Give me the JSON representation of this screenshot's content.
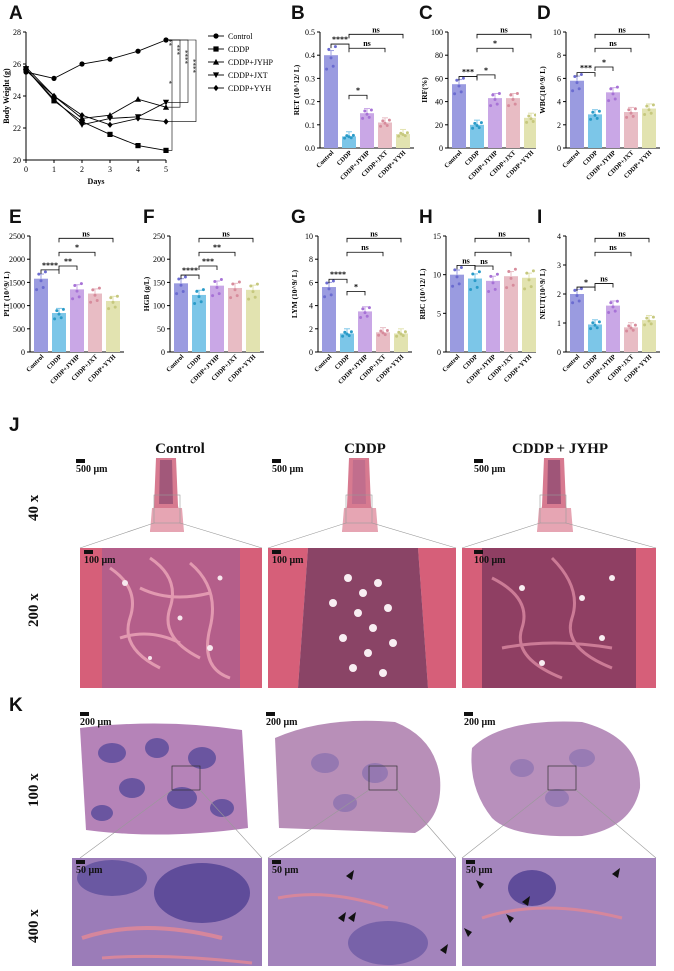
{
  "panels": {
    "A": "A",
    "B": "B",
    "C": "C",
    "D": "D",
    "E": "E",
    "F": "F",
    "G": "G",
    "H": "H",
    "I": "I",
    "J": "J",
    "K": "K"
  },
  "chart_data": [
    {
      "panel": "A",
      "type": "line",
      "xlabel": "Days",
      "ylabel": "Body Weight (g)",
      "x": [
        0,
        1,
        2,
        3,
        4,
        5
      ],
      "xlim": [
        0,
        5
      ],
      "ylim": [
        20,
        28
      ],
      "yticks": [
        20,
        22,
        24,
        26,
        28
      ],
      "series": [
        {
          "name": "Control",
          "values": [
            25.5,
            25.1,
            26.0,
            26.3,
            26.8,
            27.5
          ],
          "marker": "circle"
        },
        {
          "name": "CDDP",
          "values": [
            25.7,
            23.7,
            22.4,
            21.6,
            20.9,
            20.6
          ],
          "marker": "square"
        },
        {
          "name": "CDDP+JYHP",
          "values": [
            25.8,
            24.0,
            22.6,
            22.8,
            23.8,
            23.3
          ],
          "marker": "triangle-up"
        },
        {
          "name": "CDDP+JXT",
          "values": [
            25.7,
            23.8,
            22.2,
            22.6,
            22.7,
            23.6
          ],
          "marker": "triangle-down"
        },
        {
          "name": "CDDP+YYH",
          "values": [
            25.6,
            24.0,
            22.8,
            22.2,
            22.6,
            22.4
          ],
          "marker": "diamond"
        }
      ],
      "significance": [
        "**",
        "***",
        "****",
        "****",
        "*"
      ]
    },
    {
      "panel": "B",
      "type": "bar",
      "ylabel": "RET (10^12/ L)",
      "ylim": [
        0,
        0.5
      ],
      "yticks": [
        "0.0",
        "0.1",
        "0.2",
        "0.3",
        "0.4",
        "0.5"
      ],
      "categories": [
        "Control",
        "CDDP",
        "CDDP+JYHP",
        "CDDP+JXT",
        "CDDP+YYH"
      ],
      "values": [
        0.4,
        0.05,
        0.15,
        0.11,
        0.06
      ],
      "brackets": [
        {
          "from": 0,
          "to": 1,
          "label": "****"
        },
        {
          "from": 1,
          "to": 2,
          "label": "*"
        },
        {
          "from": 1,
          "to": 3,
          "label": "ns"
        },
        {
          "from": 1,
          "to": 4,
          "label": "ns"
        }
      ]
    },
    {
      "panel": "C",
      "type": "bar",
      "ylabel": "IRF(%)",
      "ylim": [
        0,
        100
      ],
      "yticks": [
        "0",
        "20",
        "40",
        "60",
        "80",
        "100"
      ],
      "categories": [
        "Control",
        "CDDP",
        "CDDP+JYHP",
        "CDDP+JXT",
        "CDDP+YYH"
      ],
      "values": [
        55,
        20,
        43,
        43,
        26
      ],
      "brackets": [
        {
          "from": 0,
          "to": 1,
          "label": "***"
        },
        {
          "from": 1,
          "to": 2,
          "label": "*"
        },
        {
          "from": 1,
          "to": 3,
          "label": "*"
        },
        {
          "from": 1,
          "to": 4,
          "label": "ns"
        }
      ]
    },
    {
      "panel": "D",
      "type": "bar",
      "ylabel": "WBC(10^9/ L)",
      "ylim": [
        0,
        10
      ],
      "yticks": [
        "0",
        "2",
        "4",
        "6",
        "8",
        "10"
      ],
      "categories": [
        "Control",
        "CDDP",
        "CDDP+JYHP",
        "CDDP+JXT",
        "CDDP+YYH"
      ],
      "values": [
        5.8,
        2.9,
        4.8,
        3.1,
        3.4
      ],
      "brackets": [
        {
          "from": 0,
          "to": 1,
          "label": "***"
        },
        {
          "from": 1,
          "to": 2,
          "label": "*"
        },
        {
          "from": 1,
          "to": 3,
          "label": "ns"
        },
        {
          "from": 1,
          "to": 4,
          "label": "ns"
        }
      ]
    },
    {
      "panel": "E",
      "type": "bar",
      "ylabel": "PLT (10^9/ L)",
      "ylim": [
        0,
        2500
      ],
      "yticks": [
        "0",
        "500",
        "1000",
        "1500",
        "2000",
        "2500"
      ],
      "categories": [
        "Control",
        "CDDP",
        "CDDP+JYHP",
        "CDDP+JXT",
        "CDDP+YYH"
      ],
      "values": [
        1580,
        840,
        1350,
        1260,
        1100
      ],
      "brackets": [
        {
          "from": 0,
          "to": 1,
          "label": "****"
        },
        {
          "from": 1,
          "to": 2,
          "label": "**"
        },
        {
          "from": 1,
          "to": 3,
          "label": "*"
        },
        {
          "from": 1,
          "to": 4,
          "label": "ns"
        }
      ]
    },
    {
      "panel": "F",
      "type": "bar",
      "ylabel": "HGB (g/L)",
      "ylim": [
        0,
        250
      ],
      "yticks": [
        "0",
        "50",
        "100",
        "150",
        "200",
        "250"
      ],
      "categories": [
        "Control",
        "CDDP",
        "CDDP+JYHP",
        "CDDP+JXT",
        "CDDP+YYH"
      ],
      "values": [
        148,
        123,
        143,
        138,
        134
      ],
      "brackets": [
        {
          "from": 0,
          "to": 1,
          "label": "****"
        },
        {
          "from": 1,
          "to": 2,
          "label": "***"
        },
        {
          "from": 1,
          "to": 3,
          "label": "**"
        },
        {
          "from": 1,
          "to": 4,
          "label": "ns"
        }
      ]
    },
    {
      "panel": "G",
      "type": "bar",
      "ylabel": "LYM (10^9/ L)",
      "ylim": [
        0,
        10
      ],
      "yticks": [
        "0",
        "2",
        "4",
        "6",
        "8",
        "10"
      ],
      "categories": [
        "Control",
        "CDDP",
        "CDDP+JYHP",
        "CDDP+JXT",
        "CDDP+YYH"
      ],
      "values": [
        5.6,
        1.6,
        3.5,
        1.7,
        1.6
      ],
      "brackets": [
        {
          "from": 0,
          "to": 1,
          "label": "****"
        },
        {
          "from": 1,
          "to": 2,
          "label": "*"
        },
        {
          "from": 1,
          "to": 3,
          "label": "ns"
        },
        {
          "from": 1,
          "to": 4,
          "label": "ns"
        }
      ]
    },
    {
      "panel": "H",
      "type": "bar",
      "ylabel": "RBC (10^12/ L)",
      "ylim": [
        0,
        15
      ],
      "yticks": [
        "0",
        "5",
        "10",
        "15"
      ],
      "categories": [
        "Control",
        "CDDP",
        "CDDP+JYHP",
        "CDDP+JXT",
        "CDDP+YYH"
      ],
      "values": [
        10.0,
        9.5,
        9.2,
        9.8,
        9.6
      ],
      "brackets": [
        {
          "from": 0,
          "to": 1,
          "label": "ns"
        },
        {
          "from": 1,
          "to": 2,
          "label": "ns"
        },
        {
          "from": 1,
          "to": 3,
          "label": ""
        },
        {
          "from": 1,
          "to": 4,
          "label": "ns"
        }
      ]
    },
    {
      "panel": "I",
      "type": "bar",
      "ylabel": "NEUT(10^9/ L)",
      "ylim": [
        0,
        4
      ],
      "yticks": [
        "0",
        "1",
        "2",
        "3",
        "4"
      ],
      "categories": [
        "Control",
        "CDDP",
        "CDDP+JYHP",
        "CDDP+JXT",
        "CDDP+YYH"
      ],
      "values": [
        2.0,
        0.95,
        1.6,
        0.85,
        1.1
      ],
      "brackets": [
        {
          "from": 0,
          "to": 1,
          "label": "*"
        },
        {
          "from": 1,
          "to": 2,
          "label": "ns"
        },
        {
          "from": 1,
          "to": 3,
          "label": "ns"
        },
        {
          "from": 1,
          "to": 4,
          "label": "ns"
        }
      ]
    }
  ],
  "colors": {
    "Control": "#9a9be0",
    "CDDP": "#7cc6e8",
    "CDDP+JYHP": "#c9a7e6",
    "CDDP+JXT": "#e8bcc4",
    "CDDP+YYH": "#e2e3b0",
    "Control_dot": "#6b6cd0",
    "CDDP_dot": "#2a9bc8",
    "CDDP+JYHP_dot": "#a772d6",
    "CDDP+JXT_dot": "#d78c9c",
    "CDDP+YYH_dot": "#c6c87e",
    "bone_tissue": "#d96b82",
    "marrow_tissue": "#a45a86",
    "spleen_tissue": "#9478b8",
    "spleen_white_pulp": "#5e4e9c"
  },
  "histology": {
    "J": {
      "columns": [
        "Control",
        "CDDP",
        "CDDP + JYHP"
      ],
      "rows": [
        "40 x",
        "200 x"
      ],
      "scale_top": "500 μm",
      "scale_bottom": "100 μm"
    },
    "K": {
      "rows": [
        "100 x",
        "400 x"
      ],
      "scale_top": "200 μm",
      "scale_bottom": "50 μm",
      "arrows_cddp": 4,
      "arrows_jyhp": 5
    }
  }
}
